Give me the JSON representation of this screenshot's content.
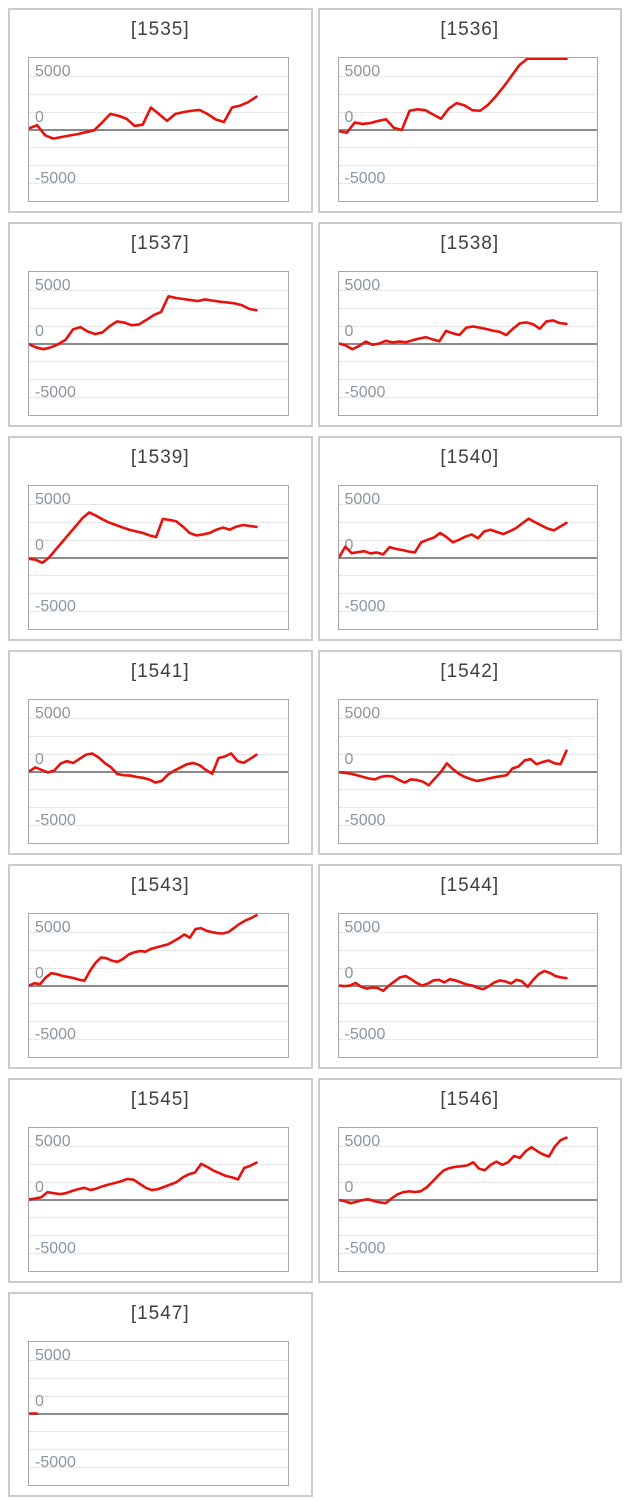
{
  "colors": {
    "line": "#e8120c",
    "zero_line": "#8a8a8a",
    "grid_line": "#d5d5d5",
    "plot_border": "#a6a6a6",
    "card_border": "#cccccc",
    "title_text": "#3f3f3f",
    "tick_text": "#8d959d",
    "background": "#ffffff"
  },
  "axis": {
    "tick_labels": [
      "5000",
      "0",
      "-5000"
    ],
    "tick_values": [
      5000,
      0,
      -5000
    ],
    "y_top": 6700,
    "y_bottom": -6700,
    "gridlines": "dotted horizontal, solid line at 0"
  },
  "chart_data": [
    {
      "type": "line",
      "title": "[1535]",
      "yticks": [
        5000,
        0,
        -5000
      ],
      "ylim": [
        -6700,
        6700
      ],
      "x_fill": 0.88,
      "values": [
        100,
        400,
        -550,
        -850,
        -700,
        -560,
        -430,
        -250,
        -90,
        650,
        1450,
        1280,
        1000,
        330,
        450,
        2050,
        1430,
        800,
        1450,
        1620,
        1750,
        1820,
        1430,
        930,
        700,
        2060,
        2230,
        2560,
        3060
      ]
    },
    {
      "type": "line",
      "title": "[1536]",
      "yticks": [
        5000,
        0,
        -5000
      ],
      "ylim": [
        -6700,
        6700
      ],
      "x_fill": 0.88,
      "values": [
        -150,
        -300,
        650,
        520,
        600,
        800,
        950,
        150,
        -50,
        1750,
        1880,
        1800,
        1400,
        1000,
        1950,
        2460,
        2250,
        1800,
        1750,
        2300,
        3100,
        4000,
        5000,
        6000,
        6600,
        6600,
        6600,
        6600,
        6600,
        6600
      ]
    },
    {
      "type": "line",
      "title": "[1537]",
      "yticks": [
        5000,
        0,
        -5000
      ],
      "ylim": [
        -6700,
        6700
      ],
      "x_fill": 0.88,
      "values": [
        -60,
        -380,
        -530,
        -350,
        -60,
        350,
        1320,
        1530,
        1120,
        880,
        1030,
        1620,
        2060,
        1950,
        1700,
        1780,
        2200,
        2650,
        2940,
        4400,
        4250,
        4150,
        4050,
        3960,
        4110,
        4000,
        3900,
        3830,
        3740,
        3580,
        3230,
        3100
      ]
    },
    {
      "type": "line",
      "title": "[1538]",
      "yticks": [
        5000,
        0,
        -5000
      ],
      "ylim": [
        -6700,
        6700
      ],
      "x_fill": 0.88,
      "values": [
        0,
        -180,
        -530,
        -240,
        180,
        -120,
        0,
        250,
        100,
        180,
        120,
        300,
        470,
        590,
        380,
        210,
        1180,
        950,
        790,
        1470,
        1590,
        1480,
        1350,
        1200,
        1090,
        790,
        1380,
        1880,
        1970,
        1800,
        1380,
        2060,
        2150,
        1900,
        1830
      ]
    },
    {
      "type": "line",
      "title": "[1539]",
      "yticks": [
        5000,
        0,
        -5000
      ],
      "ylim": [
        -6700,
        6700
      ],
      "x_fill": 0.88,
      "values": [
        -120,
        -210,
        -500,
        0,
        740,
        1470,
        2210,
        2940,
        3680,
        4200,
        3900,
        3550,
        3250,
        3030,
        2790,
        2590,
        2440,
        2290,
        2060,
        1910,
        3600,
        3500,
        3380,
        2880,
        2290,
        2060,
        2150,
        2290,
        2590,
        2790,
        2590,
        2880,
        3030,
        2940,
        2850
      ]
    },
    {
      "type": "line",
      "title": "[1540]",
      "yticks": [
        5000,
        0,
        -5000
      ],
      "ylim": [
        -6700,
        6700
      ],
      "x_fill": 0.88,
      "values": [
        0,
        1000,
        400,
        500,
        590,
        380,
        470,
        290,
        970,
        800,
        700,
        560,
        470,
        1410,
        1650,
        1850,
        2290,
        1910,
        1420,
        1650,
        1940,
        2150,
        1800,
        2440,
        2590,
        2380,
        2180,
        2440,
        2730,
        3180,
        3620,
        3300,
        3000,
        2700,
        2530,
        2880,
        3230
      ]
    },
    {
      "type": "line",
      "title": "[1541]",
      "yticks": [
        5000,
        0,
        -5000
      ],
      "ylim": [
        -6700,
        6700
      ],
      "x_fill": 0.88,
      "values": [
        0,
        380,
        150,
        -90,
        90,
        740,
        970,
        790,
        1180,
        1560,
        1680,
        1320,
        790,
        380,
        -240,
        -350,
        -380,
        -500,
        -590,
        -740,
        -1030,
        -880,
        -290,
        90,
        380,
        680,
        790,
        590,
        150,
        -210,
        1260,
        1400,
        1680,
        970,
        820,
        1180,
        1560
      ]
    },
    {
      "type": "line",
      "title": "[1542]",
      "yticks": [
        5000,
        0,
        -5000
      ],
      "ylim": [
        -6700,
        6700
      ],
      "x_fill": 0.88,
      "values": [
        -60,
        -120,
        -210,
        -350,
        -500,
        -650,
        -740,
        -500,
        -410,
        -470,
        -790,
        -1030,
        -740,
        -790,
        -940,
        -1290,
        -650,
        -60,
        760,
        240,
        -210,
        -500,
        -710,
        -880,
        -790,
        -650,
        -530,
        -440,
        -350,
        290,
        470,
        1030,
        1150,
        680,
        880,
        1030,
        760,
        680,
        1940
      ]
    },
    {
      "type": "line",
      "title": "[1543]",
      "yticks": [
        5000,
        0,
        -5000
      ],
      "ylim": [
        -6700,
        6700
      ],
      "x_fill": 0.88,
      "values": [
        0,
        210,
        120,
        740,
        1150,
        1060,
        900,
        800,
        700,
        550,
        440,
        1380,
        2120,
        2620,
        2540,
        2300,
        2210,
        2500,
        2900,
        3100,
        3210,
        3150,
        3420,
        3560,
        3700,
        3820,
        4100,
        4400,
        4760,
        4450,
        5260,
        5350,
        5100,
        4970,
        4880,
        4850,
        5000,
        5380,
        5760,
        6060,
        6280,
        6550
      ]
    },
    {
      "type": "line",
      "title": "[1544]",
      "yticks": [
        5000,
        0,
        -5000
      ],
      "ylim": [
        -6700,
        6700
      ],
      "x_fill": 0.88,
      "values": [
        0,
        -60,
        0,
        240,
        -120,
        -290,
        -180,
        -240,
        -500,
        0,
        380,
        760,
        880,
        590,
        240,
        0,
        180,
        470,
        530,
        290,
        590,
        470,
        290,
        90,
        0,
        -210,
        -350,
        -60,
        290,
        470,
        380,
        180,
        530,
        380,
        -120,
        530,
        1060,
        1350,
        1180,
        880,
        760,
        680
      ]
    },
    {
      "type": "line",
      "title": "[1545]",
      "yticks": [
        5000,
        0,
        -5000
      ],
      "ylim": [
        -6700,
        6700
      ],
      "x_fill": 0.88,
      "values": [
        0,
        90,
        210,
        680,
        590,
        500,
        590,
        790,
        970,
        1090,
        880,
        1030,
        1240,
        1400,
        1550,
        1700,
        1910,
        1850,
        1470,
        1090,
        880,
        970,
        1180,
        1400,
        1620,
        2060,
        2350,
        2520,
        3320,
        3030,
        2700,
        2450,
        2200,
        2060,
        1880,
        2940,
        3150,
        3440
      ]
    },
    {
      "type": "line",
      "title": "[1546]",
      "yticks": [
        5000,
        0,
        -5000
      ],
      "ylim": [
        -6700,
        6700
      ],
      "x_fill": 0.88,
      "values": [
        -60,
        -150,
        -350,
        -210,
        -60,
        30,
        -150,
        -260,
        -350,
        90,
        470,
        680,
        760,
        700,
        760,
        1120,
        1650,
        2230,
        2730,
        2940,
        3050,
        3100,
        3180,
        3470,
        2880,
        2730,
        3230,
        3530,
        3230,
        3470,
        4060,
        3880,
        4500,
        4880,
        4500,
        4200,
        4000,
        4940,
        5530,
        5760
      ]
    },
    {
      "type": "line",
      "title": "[1547]",
      "yticks": [
        5000,
        0,
        -5000
      ],
      "ylim": [
        -6700,
        6700
      ],
      "x_fill": 0.03,
      "values": [
        0,
        0
      ]
    }
  ]
}
